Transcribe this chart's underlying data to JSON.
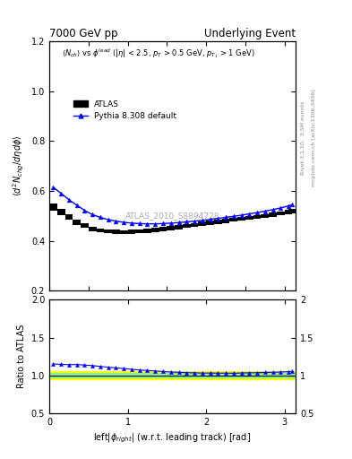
{
  "title_left": "7000 GeV pp",
  "title_right": "Underlying Event",
  "annotation": "ATLAS_2010_S8894728",
  "ylabel_main": "\\langle d^2 N_{chg}/d\\eta d\\phi \\rangle",
  "ylabel_ratio": "Ratio to ATLAS",
  "xlabel": "left|\\phi_{right}| (w.r.t. leading track) [rad]",
  "right_label1": "Rivet 3.1.10,  3.5M events",
  "right_label2": "mcplots.cern.ch [arXiv:1306.3436]",
  "ylim_main": [
    0.2,
    1.2
  ],
  "ylim_ratio": [
    0.5,
    2.0
  ],
  "xmin": 0.0,
  "xmax": 3.14159,
  "atlas_color": "black",
  "pythia_color": "#0000ff",
  "band_green": "#90ee90",
  "band_yellow": "#ffff00",
  "atlas_data_x": [
    0.05,
    0.15,
    0.25,
    0.35,
    0.45,
    0.55,
    0.65,
    0.75,
    0.85,
    0.95,
    1.05,
    1.15,
    1.25,
    1.35,
    1.45,
    1.55,
    1.65,
    1.75,
    1.85,
    1.95,
    2.05,
    2.15,
    2.25,
    2.35,
    2.45,
    2.55,
    2.65,
    2.75,
    2.85,
    2.95,
    3.05,
    3.1
  ],
  "atlas_data_y": [
    0.535,
    0.515,
    0.495,
    0.475,
    0.46,
    0.448,
    0.442,
    0.438,
    0.436,
    0.435,
    0.436,
    0.438,
    0.44,
    0.443,
    0.447,
    0.451,
    0.455,
    0.46,
    0.464,
    0.468,
    0.472,
    0.476,
    0.48,
    0.485,
    0.488,
    0.492,
    0.496,
    0.5,
    0.505,
    0.51,
    0.515,
    0.518
  ],
  "atlas_err": [
    0.015,
    0.013,
    0.011,
    0.01,
    0.009,
    0.009,
    0.008,
    0.008,
    0.008,
    0.008,
    0.008,
    0.008,
    0.008,
    0.008,
    0.008,
    0.008,
    0.008,
    0.008,
    0.008,
    0.008,
    0.008,
    0.008,
    0.008,
    0.008,
    0.008,
    0.008,
    0.008,
    0.008,
    0.008,
    0.008,
    0.009,
    0.009
  ],
  "pythia_data_x": [
    0.05,
    0.15,
    0.25,
    0.35,
    0.45,
    0.55,
    0.65,
    0.75,
    0.85,
    0.95,
    1.05,
    1.15,
    1.25,
    1.35,
    1.45,
    1.55,
    1.65,
    1.75,
    1.85,
    1.95,
    2.05,
    2.15,
    2.25,
    2.35,
    2.45,
    2.55,
    2.65,
    2.75,
    2.85,
    2.95,
    3.05,
    3.1
  ],
  "pythia_data_y": [
    0.615,
    0.59,
    0.565,
    0.543,
    0.522,
    0.505,
    0.494,
    0.485,
    0.479,
    0.474,
    0.471,
    0.469,
    0.468,
    0.468,
    0.469,
    0.471,
    0.473,
    0.476,
    0.479,
    0.482,
    0.486,
    0.49,
    0.494,
    0.498,
    0.503,
    0.508,
    0.513,
    0.519,
    0.525,
    0.532,
    0.54,
    0.545
  ],
  "ratio_pythia_y": [
    1.15,
    1.145,
    1.141,
    1.143,
    1.135,
    1.128,
    1.118,
    1.107,
    1.099,
    1.09,
    1.08,
    1.071,
    1.064,
    1.057,
    1.05,
    1.044,
    1.04,
    1.035,
    1.033,
    1.03,
    1.03,
    1.029,
    1.029,
    1.028,
    1.031,
    1.033,
    1.034,
    1.038,
    1.04,
    1.043,
    1.049,
    1.052
  ],
  "green_band_y1": 0.97,
  "green_band_y2": 1.03,
  "yellow_band_y1": 0.95,
  "yellow_band_y2": 1.05
}
